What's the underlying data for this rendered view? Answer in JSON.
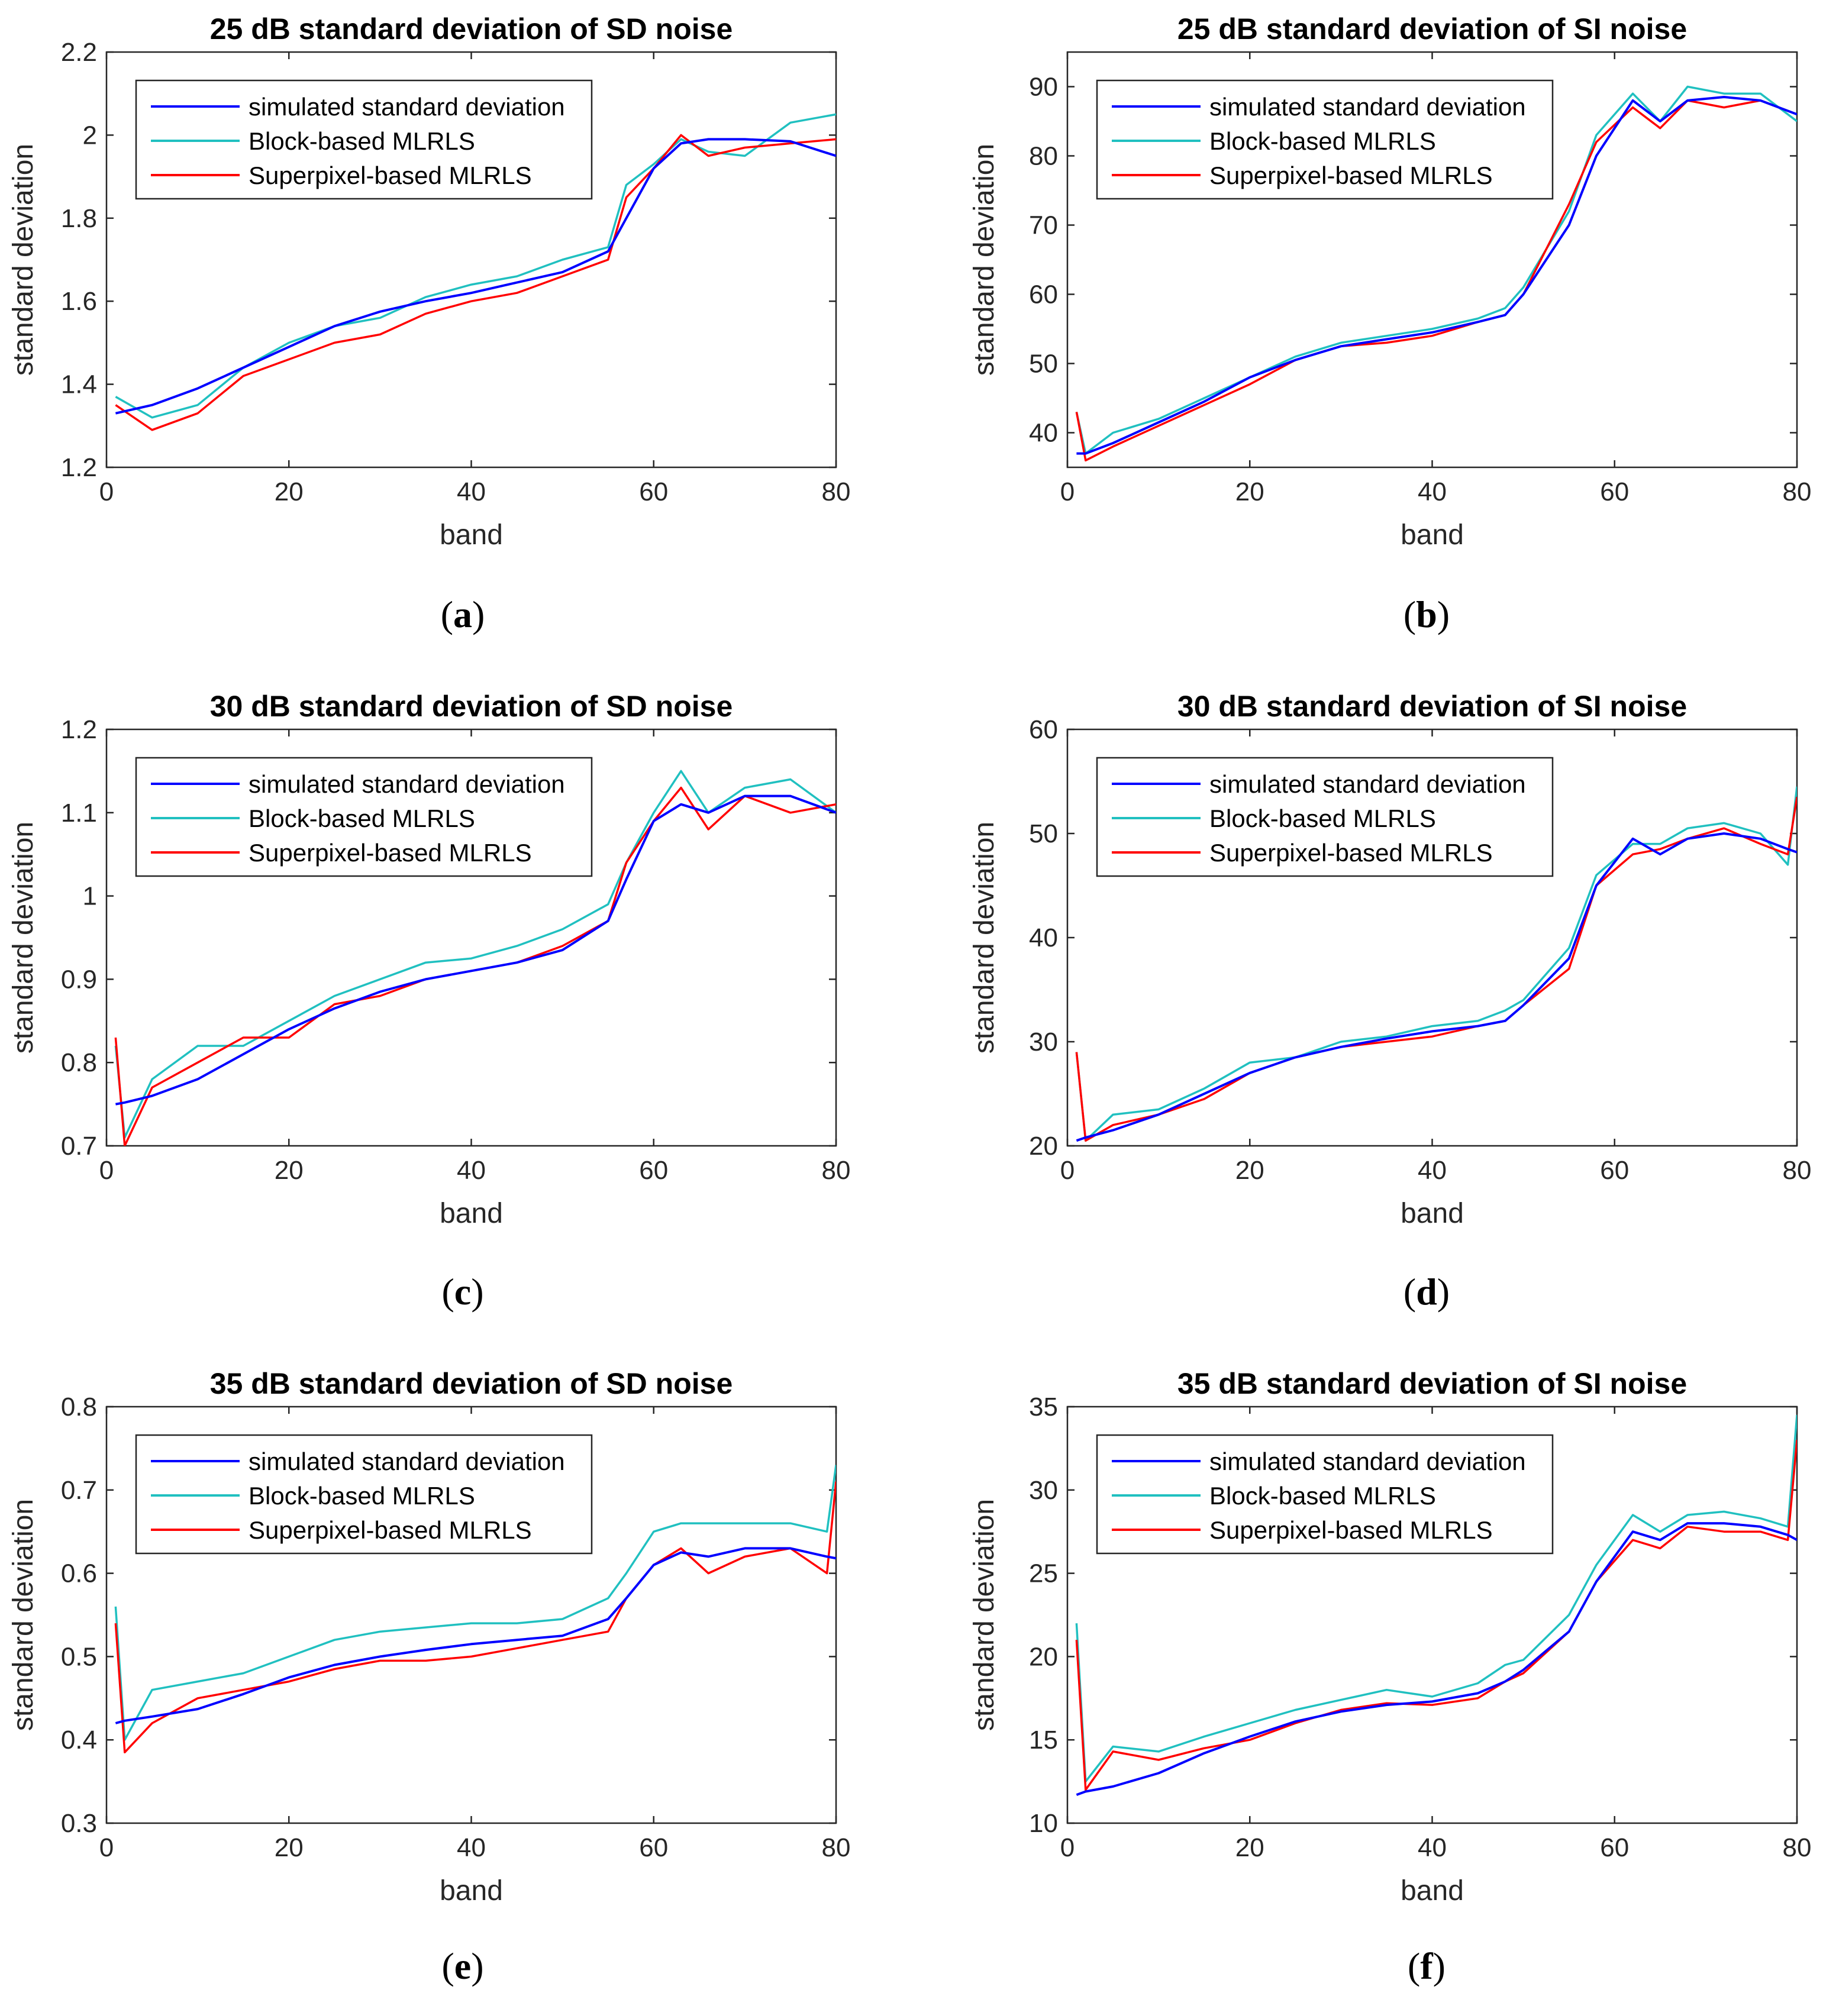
{
  "legend_labels": [
    "simulated standard deviation",
    "Block-based MLRLS",
    "Superpixel-based MLRLS"
  ],
  "colors": {
    "simulated": "#0000ff",
    "block": "#20c0c0",
    "superpixel": "#ff0000",
    "axis": "#262626"
  },
  "chart_data": [
    {
      "type": "line",
      "id": "a",
      "caption_letter": "a",
      "title": "25 dB standard deviation of SD noise",
      "xlabel": "band",
      "ylabel": "standard deviation",
      "xlim": [
        0,
        80
      ],
      "ylim": [
        1.2,
        2.2
      ],
      "xticks": [
        "0",
        "20",
        "40",
        "60",
        "80"
      ],
      "yticks": [
        "1.2",
        "1.4",
        "1.6",
        "1.8",
        "2",
        "2.2"
      ],
      "legend": "top-left",
      "x": [
        1,
        5,
        10,
        15,
        20,
        25,
        30,
        35,
        40,
        45,
        50,
        55,
        57,
        60,
        63,
        66,
        70,
        75,
        80
      ],
      "series": [
        {
          "name": "simulated standard deviation",
          "key": "simulated",
          "values": [
            1.33,
            1.35,
            1.39,
            1.44,
            1.49,
            1.54,
            1.575,
            1.6,
            1.62,
            1.645,
            1.67,
            1.72,
            1.8,
            1.92,
            1.98,
            1.99,
            1.99,
            1.985,
            1.95
          ]
        },
        {
          "name": "Block-based MLRLS",
          "key": "block",
          "values": [
            1.37,
            1.32,
            1.35,
            1.44,
            1.5,
            1.54,
            1.56,
            1.61,
            1.64,
            1.66,
            1.7,
            1.73,
            1.88,
            1.93,
            1.99,
            1.96,
            1.95,
            2.03,
            2.05
          ]
        },
        {
          "name": "Superpixel-based MLRLS",
          "key": "superpixel",
          "values": [
            1.35,
            1.29,
            1.33,
            1.42,
            1.46,
            1.5,
            1.52,
            1.57,
            1.6,
            1.62,
            1.66,
            1.7,
            1.85,
            1.92,
            2.0,
            1.95,
            1.97,
            1.98,
            1.99
          ]
        }
      ]
    },
    {
      "type": "line",
      "id": "b",
      "caption_letter": "b",
      "title": "25 dB standard deviation of SI noise",
      "xlabel": "band",
      "ylabel": "standard deviation",
      "xlim": [
        0,
        80
      ],
      "ylim": [
        35,
        95
      ],
      "xticks": [
        "0",
        "20",
        "40",
        "60",
        "80"
      ],
      "yticks": [
        "40",
        "50",
        "60",
        "70",
        "80",
        "90"
      ],
      "legend": "top-left",
      "x": [
        1,
        2,
        5,
        10,
        15,
        20,
        25,
        30,
        35,
        40,
        45,
        48,
        50,
        55,
        58,
        62,
        65,
        68,
        72,
        76,
        80
      ],
      "series": [
        {
          "name": "simulated standard deviation",
          "key": "simulated",
          "values": [
            37,
            37,
            38.5,
            41.5,
            44.5,
            48,
            50.5,
            52.5,
            53.5,
            54.5,
            56,
            57,
            60,
            70,
            80,
            88,
            85,
            88,
            88.5,
            88,
            86
          ]
        },
        {
          "name": "Block-based MLRLS",
          "key": "block",
          "values": [
            43,
            37,
            40,
            42,
            45,
            48,
            51,
            53,
            54,
            55,
            56.5,
            58,
            61,
            72,
            83,
            89,
            85,
            90,
            89,
            89,
            85
          ]
        },
        {
          "name": "Superpixel-based MLRLS",
          "key": "superpixel",
          "values": [
            43,
            36,
            38,
            41,
            44,
            47,
            50.5,
            52.5,
            53,
            54,
            56,
            57,
            60,
            73,
            82,
            87,
            84,
            88,
            87,
            88,
            86
          ]
        }
      ]
    },
    {
      "type": "line",
      "id": "c",
      "caption_letter": "c",
      "title": "30 dB standard deviation of SD noise",
      "xlabel": "band",
      "ylabel": "standard deviation",
      "xlim": [
        0,
        80
      ],
      "ylim": [
        0.7,
        1.2
      ],
      "xticks": [
        "0",
        "20",
        "40",
        "60",
        "80"
      ],
      "yticks": [
        "0.7",
        "0.8",
        "0.9",
        "1",
        "1.1",
        "1.2"
      ],
      "legend": "top-left",
      "x": [
        1,
        2,
        5,
        10,
        15,
        20,
        25,
        30,
        35,
        40,
        45,
        50,
        55,
        57,
        60,
        63,
        66,
        70,
        75,
        80
      ],
      "series": [
        {
          "name": "simulated standard deviation",
          "key": "simulated",
          "values": [
            0.75,
            0.752,
            0.76,
            0.78,
            0.81,
            0.84,
            0.865,
            0.885,
            0.9,
            0.91,
            0.92,
            0.935,
            0.97,
            1.02,
            1.09,
            1.11,
            1.1,
            1.12,
            1.12,
            1.1
          ]
        },
        {
          "name": "Block-based MLRLS",
          "key": "block",
          "values": [
            0.82,
            0.71,
            0.78,
            0.82,
            0.82,
            0.85,
            0.88,
            0.9,
            0.92,
            0.925,
            0.94,
            0.96,
            0.99,
            1.04,
            1.1,
            1.15,
            1.1,
            1.13,
            1.14,
            1.1
          ]
        },
        {
          "name": "Superpixel-based MLRLS",
          "key": "superpixel",
          "values": [
            0.83,
            0.7,
            0.77,
            0.8,
            0.83,
            0.83,
            0.87,
            0.88,
            0.9,
            0.91,
            0.92,
            0.94,
            0.97,
            1.04,
            1.09,
            1.13,
            1.08,
            1.12,
            1.1,
            1.11
          ]
        }
      ]
    },
    {
      "type": "line",
      "id": "d",
      "caption_letter": "d",
      "title": "30 dB standard deviation of SI noise",
      "xlabel": "band",
      "ylabel": "standard deviation",
      "xlim": [
        0,
        80
      ],
      "ylim": [
        20,
        60
      ],
      "xticks": [
        "0",
        "20",
        "40",
        "60",
        "80"
      ],
      "yticks": [
        "20",
        "30",
        "40",
        "50",
        "60"
      ],
      "legend": "top-left",
      "x": [
        1,
        2,
        5,
        10,
        15,
        20,
        25,
        30,
        35,
        40,
        45,
        48,
        50,
        55,
        58,
        62,
        65,
        68,
        72,
        76,
        79,
        80
      ],
      "series": [
        {
          "name": "simulated standard deviation",
          "key": "simulated",
          "values": [
            20.5,
            20.8,
            21.5,
            23,
            25,
            27,
            28.5,
            29.5,
            30.3,
            31,
            31.5,
            32,
            33.5,
            38,
            45,
            49.5,
            48,
            49.5,
            50,
            49.5,
            48.5,
            48.2
          ]
        },
        {
          "name": "Block-based MLRLS",
          "key": "block",
          "values": [
            29,
            20.5,
            23,
            23.5,
            25.5,
            28,
            28.5,
            30,
            30.5,
            31.5,
            32,
            33,
            34,
            39,
            46,
            49,
            49,
            50.5,
            51,
            50,
            47,
            54.5
          ]
        },
        {
          "name": "Superpixel-based MLRLS",
          "key": "superpixel",
          "values": [
            29,
            20.5,
            22,
            23,
            24.5,
            27,
            28.5,
            29.5,
            30,
            30.5,
            31.5,
            32,
            33.5,
            37,
            45,
            48,
            48.5,
            49.5,
            50.5,
            49,
            48,
            53.5
          ]
        }
      ]
    },
    {
      "type": "line",
      "id": "e",
      "caption_letter": "e",
      "title": "35 dB standard deviation of SD noise",
      "xlabel": "band",
      "ylabel": "standard deviation",
      "xlim": [
        0,
        80
      ],
      "ylim": [
        0.3,
        0.8
      ],
      "xticks": [
        "0",
        "20",
        "40",
        "60",
        "80"
      ],
      "yticks": [
        "0.3",
        "0.4",
        "0.5",
        "0.6",
        "0.7",
        "0.8"
      ],
      "legend": "top-left",
      "x": [
        1,
        2,
        5,
        10,
        15,
        20,
        25,
        30,
        35,
        40,
        45,
        50,
        55,
        57,
        60,
        63,
        66,
        70,
        75,
        79,
        80
      ],
      "series": [
        {
          "name": "simulated standard deviation",
          "key": "simulated",
          "values": [
            0.42,
            0.423,
            0.428,
            0.437,
            0.455,
            0.475,
            0.49,
            0.5,
            0.508,
            0.515,
            0.52,
            0.525,
            0.545,
            0.57,
            0.61,
            0.625,
            0.62,
            0.63,
            0.63,
            0.62,
            0.618
          ]
        },
        {
          "name": "Block-based MLRLS",
          "key": "block",
          "values": [
            0.56,
            0.4,
            0.46,
            0.47,
            0.48,
            0.5,
            0.52,
            0.53,
            0.535,
            0.54,
            0.54,
            0.545,
            0.57,
            0.6,
            0.65,
            0.66,
            0.66,
            0.66,
            0.66,
            0.65,
            0.73
          ]
        },
        {
          "name": "Superpixel-based MLRLS",
          "key": "superpixel",
          "values": [
            0.54,
            0.385,
            0.42,
            0.45,
            0.46,
            0.47,
            0.485,
            0.495,
            0.495,
            0.5,
            0.51,
            0.52,
            0.53,
            0.57,
            0.61,
            0.63,
            0.6,
            0.62,
            0.63,
            0.6,
            0.71
          ]
        }
      ]
    },
    {
      "type": "line",
      "id": "f",
      "caption_letter": "f",
      "title": "35 dB standard deviation of SI noise",
      "xlabel": "band",
      "ylabel": "standard deviation",
      "xlim": [
        0,
        80
      ],
      "ylim": [
        10,
        35
      ],
      "xticks": [
        "0",
        "20",
        "40",
        "60",
        "80"
      ],
      "yticks": [
        "10",
        "15",
        "20",
        "25",
        "30",
        "35"
      ],
      "legend": "top-left",
      "x": [
        1,
        2,
        5,
        10,
        15,
        20,
        25,
        30,
        35,
        40,
        45,
        48,
        50,
        55,
        58,
        62,
        65,
        68,
        72,
        76,
        79,
        80
      ],
      "series": [
        {
          "name": "simulated standard deviation",
          "key": "simulated",
          "values": [
            11.7,
            11.9,
            12.2,
            13,
            14.2,
            15.2,
            16.1,
            16.7,
            17.1,
            17.3,
            17.8,
            18.5,
            19.2,
            21.5,
            24.5,
            27.5,
            27,
            28,
            28,
            27.8,
            27.3,
            27
          ]
        },
        {
          "name": "Block-based MLRLS",
          "key": "block",
          "values": [
            22,
            12.5,
            14.6,
            14.3,
            15.2,
            16,
            16.8,
            17.4,
            18,
            17.6,
            18.4,
            19.5,
            19.8,
            22.5,
            25.5,
            28.5,
            27.5,
            28.5,
            28.7,
            28.3,
            27.8,
            34.5
          ]
        },
        {
          "name": "Superpixel-based MLRLS",
          "key": "superpixel",
          "values": [
            21,
            12,
            14.3,
            13.8,
            14.5,
            15,
            16,
            16.8,
            17.2,
            17.1,
            17.5,
            18.5,
            19,
            21.5,
            24.5,
            27,
            26.5,
            27.8,
            27.5,
            27.5,
            27,
            33
          ]
        }
      ]
    }
  ]
}
